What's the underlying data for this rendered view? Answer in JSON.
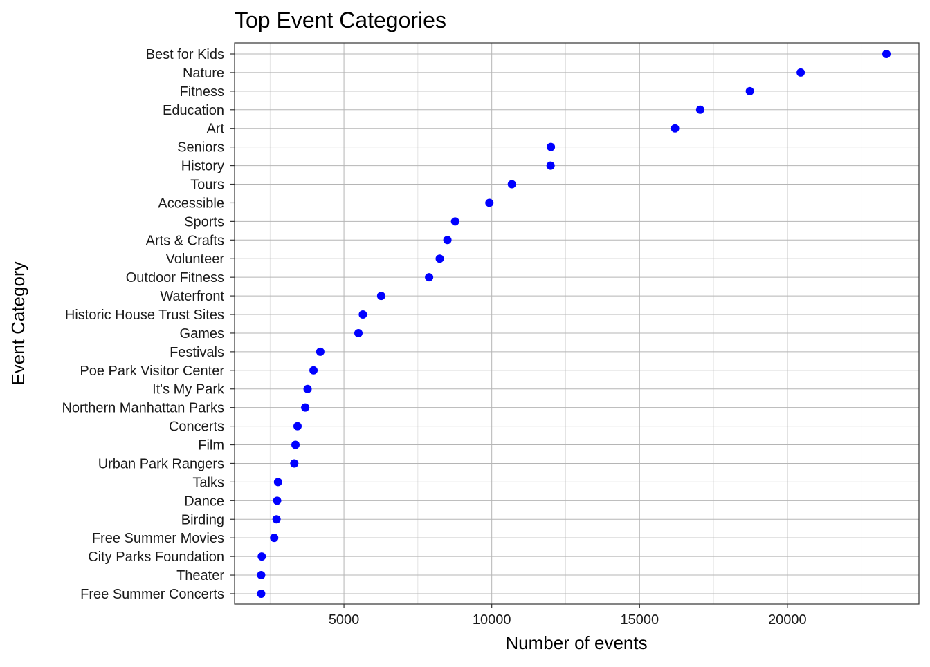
{
  "chart_data": {
    "type": "scatter",
    "title": "Top Event Categories",
    "xlabel": "Number of events",
    "ylabel": "Event Category",
    "xlim": [
      1300,
      24450
    ],
    "x_ticks": [
      5000,
      10000,
      15000,
      20000
    ],
    "grid": true,
    "legend": "none",
    "point_color": "#0000FF",
    "categories": [
      "Best for Kids",
      "Nature",
      "Fitness",
      "Education",
      "Art",
      "Seniors",
      "History",
      "Tours",
      "Accessible",
      "Sports",
      "Arts & Crafts",
      "Volunteer",
      "Outdoor Fitness",
      "Waterfront",
      "Historic House Trust Sites",
      "Games",
      "Festivals",
      "Poe Park Visitor Center",
      "It's My Park",
      "Northern Manhattan Parks",
      "Concerts",
      "Film",
      "Urban Park Rangers",
      "Talks",
      "Dance",
      "Birding",
      "Free Summer Movies",
      "City Parks Foundation",
      "Theater",
      "Free Summer Concerts"
    ],
    "values": [
      23350,
      20450,
      18730,
      17050,
      16200,
      12000,
      11990,
      10680,
      9920,
      8760,
      8500,
      8240,
      7880,
      6260,
      5640,
      5490,
      4200,
      3970,
      3770,
      3690,
      3430,
      3360,
      3320,
      2770,
      2740,
      2720,
      2640,
      2220,
      2200,
      2200
    ]
  }
}
